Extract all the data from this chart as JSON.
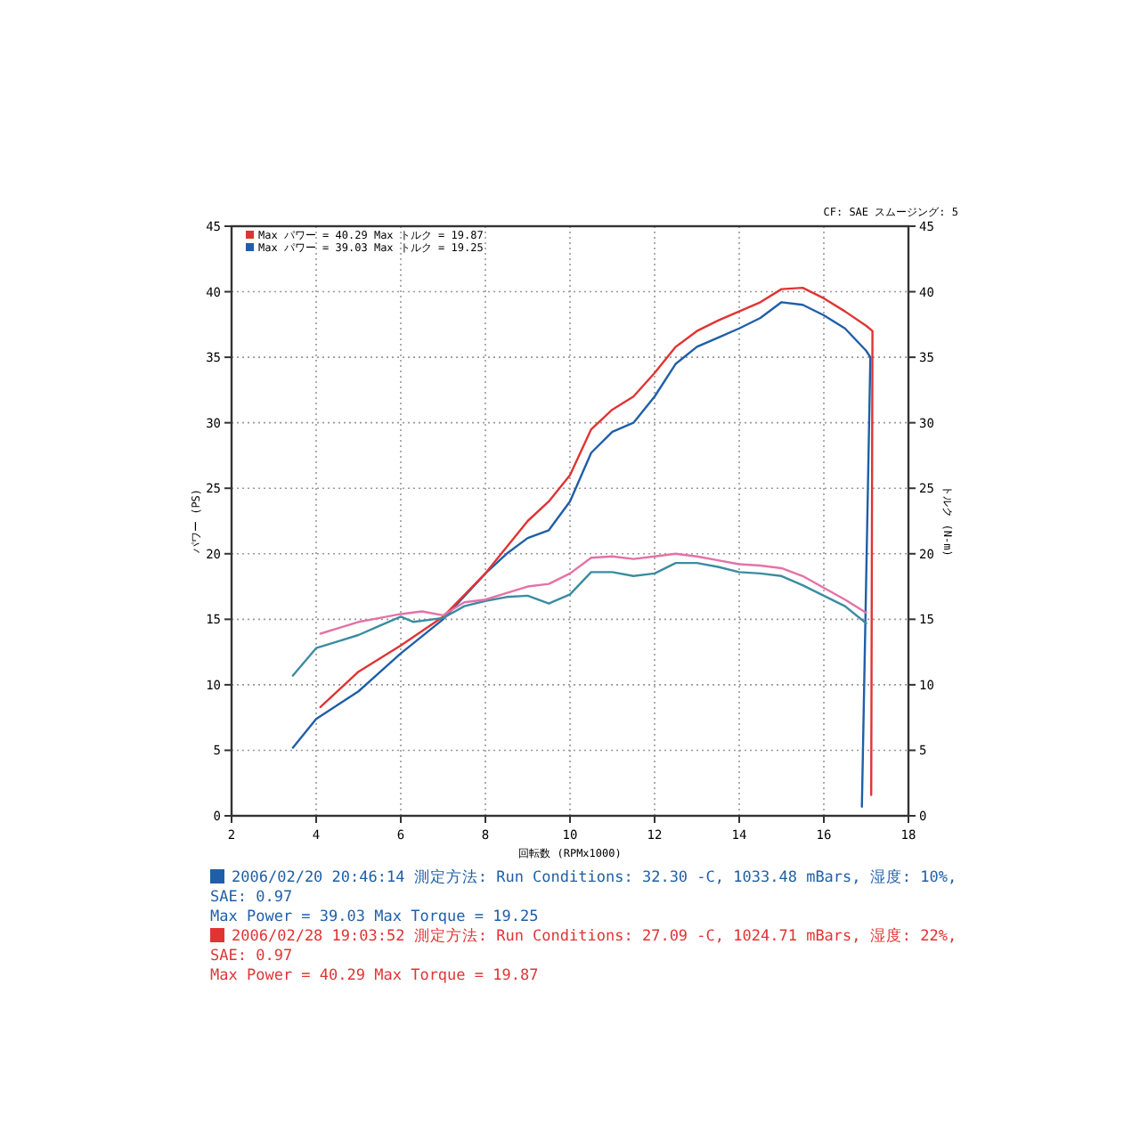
{
  "chart_data": {
    "type": "line",
    "xlabel": "回転数 (RPMx1000)",
    "ylabel": "パワー (PS)",
    "y2label": "トルク (N-m)",
    "xlim": [
      2,
      18
    ],
    "xticks": [
      2,
      4,
      6,
      8,
      10,
      12,
      14,
      16,
      18
    ],
    "ylim": [
      0,
      45
    ],
    "yticks": [
      0,
      5,
      10,
      15,
      20,
      25,
      30,
      35,
      40,
      45
    ],
    "y2lim": [
      0,
      45
    ],
    "y2ticks": [
      0,
      5,
      10,
      15,
      20,
      25,
      30,
      35,
      40,
      45
    ],
    "grid": true,
    "line_style": "solid",
    "marker": "none",
    "series": [
      {
        "color": "#1f5fa8",
        "x": [
          3.45,
          4,
          5,
          6,
          7,
          8,
          8.5,
          9,
          9.5,
          10,
          10.5,
          11,
          11.5,
          12,
          12.5,
          13,
          13.5,
          14,
          14.5,
          15,
          15.5,
          16,
          16.5,
          17,
          17.1,
          16.9
        ],
        "values": [
          5.2,
          7.4,
          9.5,
          12.4,
          15,
          18.5,
          20,
          21.2,
          21.8,
          24,
          27.7,
          29.3,
          30,
          32,
          34.5,
          35.8,
          36.5,
          37.2,
          38,
          39.2,
          39,
          38.2,
          37.2,
          35.5,
          35,
          0.7
        ]
      },
      {
        "color": "#e03434",
        "x": [
          4.1,
          5,
          6,
          7,
          8,
          9,
          9.5,
          10,
          10.5,
          11,
          11.5,
          12,
          12.5,
          13,
          13.5,
          14,
          14.5,
          15,
          15.5,
          16,
          16.5,
          17,
          17.15,
          17.12
        ],
        "values": [
          8.3,
          11,
          13,
          15.2,
          18.5,
          22.5,
          24,
          26,
          29.5,
          31,
          32,
          33.8,
          35.8,
          37,
          37.8,
          38.5,
          39.2,
          40.2,
          40.3,
          39.5,
          38.5,
          37.4,
          37,
          1.6
        ]
      },
      {
        "color": "#3b8ca0",
        "x": [
          3.45,
          4,
          4.5,
          5,
          5.5,
          6,
          6.3,
          7,
          7.5,
          8,
          8.5,
          9,
          9.5,
          10,
          10.5,
          11,
          11.5,
          12,
          12.5,
          13,
          13.5,
          14,
          14.5,
          15,
          15.5,
          16,
          16.5,
          17
        ],
        "values": [
          10.7,
          12.8,
          13.3,
          13.8,
          14.5,
          15.2,
          14.8,
          15.1,
          16,
          16.4,
          16.7,
          16.8,
          16.2,
          16.9,
          18.6,
          18.6,
          18.3,
          18.5,
          19.3,
          19.3,
          19,
          18.6,
          18.5,
          18.3,
          17.6,
          16.8,
          16,
          14.7
        ]
      },
      {
        "color": "#e472a6",
        "x": [
          4.1,
          4.5,
          5,
          5.5,
          6,
          6.5,
          7,
          7.5,
          8,
          8.5,
          9,
          9.5,
          10,
          10.5,
          11,
          11.5,
          12,
          12.5,
          13,
          13.5,
          14,
          14.5,
          15,
          15.5,
          16,
          16.5,
          17
        ],
        "values": [
          13.9,
          14.3,
          14.8,
          15.1,
          15.4,
          15.6,
          15.3,
          16.3,
          16.5,
          17,
          17.5,
          17.7,
          18.5,
          19.7,
          19.8,
          19.6,
          19.8,
          20,
          19.8,
          19.5,
          19.2,
          19.1,
          18.9,
          18.3,
          17.4,
          16.5,
          15.5
        ]
      }
    ],
    "annotations": [
      "CF: SAE スムージング: 5",
      "Max パワー = 40.29   Max トルク = 19.87",
      "Max パワー = 39.03   Max トルク = 19.25",
      "2006/02/20 20:46:14 測定方法:   Run Conditions: 32.30 -C, 1033.48 mBars,  湿度: 10%, SAE: 0.97",
      "Max Power = 39.03  Max Torque = 19.25",
      "2006/02/28 19:03:52 測定方法:   Run Conditions: 27.09 -C, 1024.71 mBars,  湿度: 22%, SAE: 0.97",
      "Max Power = 40.29  Max Torque = 19.87"
    ]
  }
}
